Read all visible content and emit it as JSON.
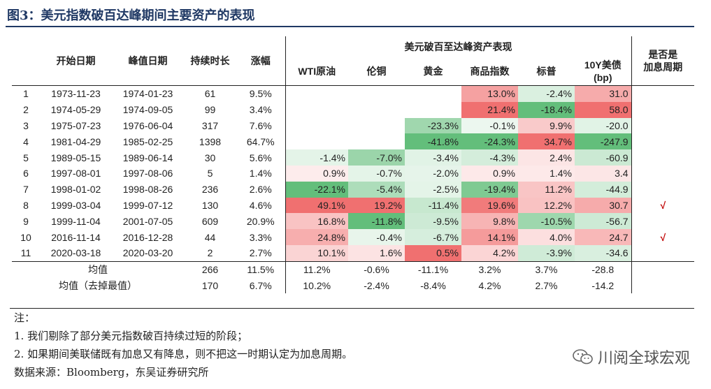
{
  "title": "图3：美元指数破百达峰期间主要资产的表现",
  "headers": {
    "start": "开始日期",
    "peak": "峰值日期",
    "duration": "持续时长",
    "change": "涨幅",
    "group": "美元破百至达峰资产表现",
    "assets": [
      "WTI原油",
      "伦铜",
      "黄金",
      "商品指数",
      "标普",
      "10Y美债"
    ],
    "bp": "(bp)",
    "hike": "是否是加息周期",
    "hike_line1": "是否是",
    "hike_line2": "加息周期"
  },
  "rows": [
    {
      "n": "1",
      "start": "1973-11-23",
      "peak": "1974-01-23",
      "dur": "61",
      "chg": "9.5%",
      "v": [
        "",
        "",
        "",
        "13.0%",
        "-2.4%",
        "31.0"
      ],
      "hike": ""
    },
    {
      "n": "2",
      "start": "1974-05-29",
      "peak": "1974-09-05",
      "dur": "99",
      "chg": "3.4%",
      "v": [
        "",
        "",
        "",
        "21.4%",
        "-18.4%",
        "58.0"
      ],
      "hike": ""
    },
    {
      "n": "3",
      "start": "1975-07-23",
      "peak": "1976-06-04",
      "dur": "317",
      "chg": "7.6%",
      "v": [
        "",
        "",
        "-23.3%",
        "-0.1%",
        "9.9%",
        "-20.0"
      ],
      "hike": ""
    },
    {
      "n": "4",
      "start": "1981-04-29",
      "peak": "1985-02-25",
      "dur": "1398",
      "chg": "64.7%",
      "v": [
        "",
        "",
        "-41.8%",
        "-24.3%",
        "34.7%",
        "-247.9"
      ],
      "hike": ""
    },
    {
      "n": "5",
      "start": "1989-05-15",
      "peak": "1989-06-14",
      "dur": "30",
      "chg": "5.6%",
      "v": [
        "-1.4%",
        "-7.0%",
        "-3.4%",
        "-4.3%",
        "2.4%",
        "-60.9"
      ],
      "hike": ""
    },
    {
      "n": "6",
      "start": "1997-08-01",
      "peak": "1997-08-06",
      "dur": "5",
      "chg": "1.4%",
      "v": [
        "0.9%",
        "-0.7%",
        "-2.0%",
        "0.9%",
        "1.4%",
        "3.4"
      ],
      "hike": ""
    },
    {
      "n": "7",
      "start": "1998-01-02",
      "peak": "1998-08-26",
      "dur": "236",
      "chg": "2.6%",
      "v": [
        "-22.1%",
        "-5.4%",
        "-2.5%",
        "-19.4%",
        "11.2%",
        "-44.9"
      ],
      "hike": ""
    },
    {
      "n": "8",
      "start": "1999-03-04",
      "peak": "1999-07-12",
      "dur": "130",
      "chg": "4.6%",
      "v": [
        "49.1%",
        "19.2%",
        "-11.4%",
        "19.6%",
        "12.2%",
        "30.7"
      ],
      "hike": "√"
    },
    {
      "n": "9",
      "start": "1999-11-04",
      "peak": "2001-07-05",
      "dur": "609",
      "chg": "20.9%",
      "v": [
        "16.8%",
        "-11.8%",
        "-9.5%",
        "9.8%",
        "-10.5%",
        "-56.7"
      ],
      "hike": ""
    },
    {
      "n": "10",
      "start": "2016-11-14",
      "peak": "2016-12-28",
      "dur": "44",
      "chg": "3.3%",
      "v": [
        "24.8%",
        "-0.4%",
        "-6.7%",
        "14.1%",
        "4.0%",
        "24.7"
      ],
      "hike": "√"
    },
    {
      "n": "11",
      "start": "2020-03-18",
      "peak": "2020-03-20",
      "dur": "2",
      "chg": "2.7%",
      "v": [
        "10.1%",
        "1.6%",
        "0.5%",
        "4.2%",
        "-3.9%",
        "-34.6"
      ],
      "hike": ""
    }
  ],
  "avg": {
    "label": "均值",
    "dur": "266",
    "chg": "11.5%",
    "v": [
      "11.2%",
      "-0.6%",
      "-11.1%",
      "3.2%",
      "3.7%",
      "-28.8"
    ]
  },
  "avg_trim": {
    "label": "均值（去掉最值）",
    "dur": "170",
    "chg": "6.7%",
    "v": [
      "10.2%",
      "-2.4%",
      "-8.4%",
      "4.2%",
      "2.7%",
      "-14.2"
    ]
  },
  "notes": [
    "注：",
    "1. 我们剔除了部分美元指数破百持续过短的阶段；",
    "2. 如果期间美联储既有加息又有降息，则不把这一时期认定为加息周期。",
    "数据来源：Bloomberg，东吴证券研究所"
  ],
  "watermark": "川阅全球宏观",
  "colors": {
    "title": "#1f3864",
    "check": "#c00000",
    "heat_pos_strong": "#f07070",
    "heat_pos_weak": "#fde3e3",
    "heat_neg_strong": "#63be7b",
    "heat_neg_weak": "#e6f4ea"
  },
  "heat_cols": {
    "WTI原油": [
      -22.1,
      49.1
    ],
    "伦铜": [
      -11.8,
      19.2
    ],
    "黄金": [
      -41.8,
      0.5
    ],
    "商品指数": [
      -24.3,
      21.4
    ],
    "标普": [
      -18.4,
      34.7
    ],
    "10Y美债": [
      -247.9,
      58.0
    ]
  }
}
